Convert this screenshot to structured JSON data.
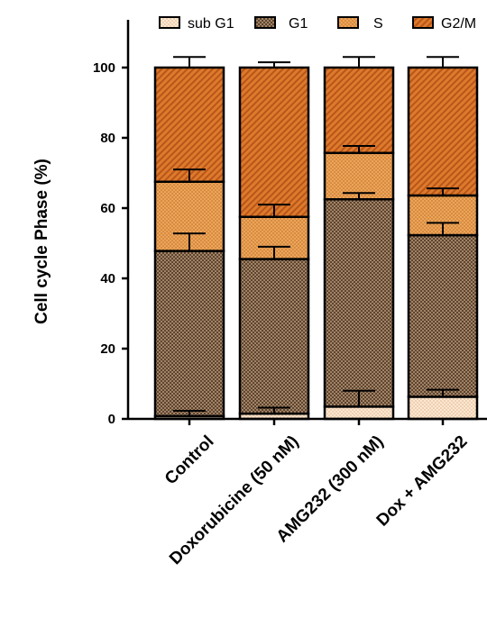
{
  "chart_data": {
    "type": "bar",
    "stacked": true,
    "title": "",
    "xlabel": "",
    "ylabel": "Cell cycle Phase (%)",
    "ylim": [
      0,
      100
    ],
    "yticks": [
      "0",
      "20",
      "40",
      "60",
      "80",
      "100"
    ],
    "categories": [
      "Control",
      "Doxorubicine (50 nM)",
      "AMG232 (300 nM)",
      "Dox + AMG232"
    ],
    "legend_position": "top",
    "grid": false,
    "series": [
      {
        "name": "sub G1",
        "values": [
          0.8,
          1.5,
          3.5,
          6.3
        ],
        "errors": [
          1.5,
          1.7,
          4.5,
          2.0
        ],
        "color": "#f8dcbc",
        "pattern": "dots"
      },
      {
        "name": "G1",
        "values": [
          47.0,
          44.0,
          59.0,
          46.0
        ],
        "errors": [
          5.0,
          3.5,
          1.8,
          3.5
        ],
        "color": "#8c6a4e",
        "pattern": "checker"
      },
      {
        "name": "S",
        "values": [
          19.7,
          12.0,
          13.2,
          11.3
        ],
        "errors": [
          3.5,
          3.5,
          2.0,
          2.0
        ],
        "color": "#e69848",
        "pattern": "dots"
      },
      {
        "name": "G2/M",
        "values": [
          32.5,
          42.5,
          24.3,
          36.4
        ],
        "errors": [
          3.0,
          1.5,
          3.0,
          3.0
        ],
        "color": "#d06a22",
        "pattern": "hatch"
      }
    ]
  }
}
